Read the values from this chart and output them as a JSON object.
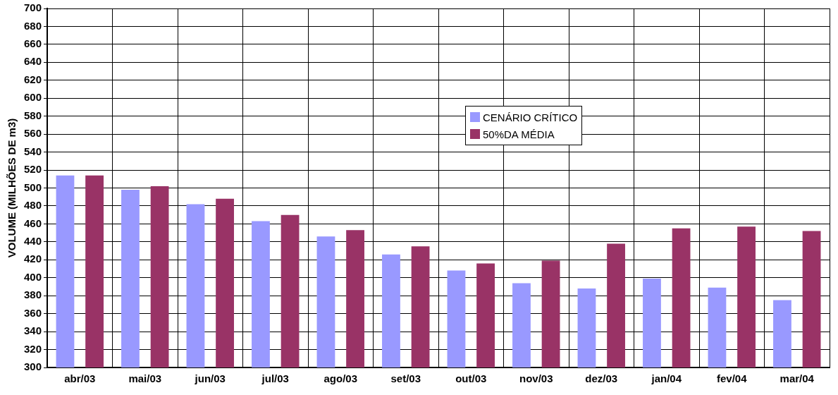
{
  "chart_data": {
    "type": "bar",
    "ylabel": "VOLUME (MILHÕES DE m3)",
    "categories": [
      "abr/03",
      "mai/03",
      "jun/03",
      "jul/03",
      "ago/03",
      "set/03",
      "out/03",
      "nov/03",
      "dez/03",
      "jan/04",
      "fev/04",
      "mar/04"
    ],
    "series": [
      {
        "name": "CENÁRIO CRÍTICO",
        "color": "#9999ff",
        "values": [
          514,
          498,
          482,
          463,
          446,
          426,
          408,
          394,
          388,
          399,
          389,
          375
        ]
      },
      {
        "name": "50%DA MÉDIA",
        "color": "#993366",
        "values": [
          514,
          502,
          488,
          470,
          453,
          435,
          416,
          419,
          438,
          455,
          457,
          452
        ]
      }
    ],
    "ylim": [
      300,
      700
    ],
    "yticks": [
      300,
      320,
      340,
      360,
      380,
      400,
      420,
      440,
      460,
      480,
      500,
      520,
      540,
      560,
      580,
      600,
      620,
      640,
      660,
      680,
      700
    ],
    "grid": true,
    "legend": "top"
  }
}
